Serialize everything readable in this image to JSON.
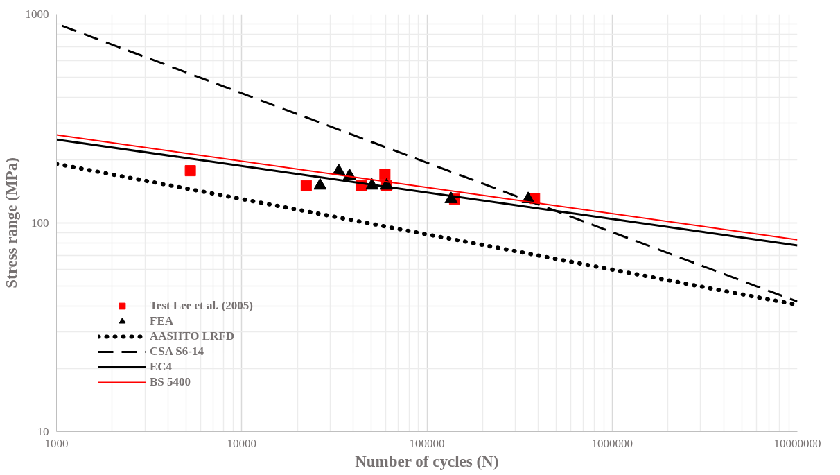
{
  "chart_data": {
    "type": "line",
    "xlabel": "Number of cycles (N)",
    "ylabel": "Stress range (MPa)",
    "log": "xy",
    "grid": true,
    "legend": "bottom left",
    "xlim": [
      1000,
      10000000
    ],
    "xticks": [
      1000,
      10000,
      100000,
      1000000,
      10000000
    ],
    "ylim": [
      10,
      1000
    ],
    "yticks": [
      10,
      100,
      1000
    ],
    "series": [
      {
        "name": "Test Lee et al. (2005)",
        "type": "scatter",
        "marker": "square",
        "color": "#ff0000",
        "x": [
          5280,
          22300,
          44100,
          59300,
          60600,
          141000,
          381000
        ],
        "values": [
          178,
          151,
          151,
          171,
          151,
          130,
          131
        ]
      },
      {
        "name": "FEA",
        "type": "scatter",
        "marker": "triangle",
        "color": "#000000",
        "x": [
          26500,
          33400,
          38200,
          50500,
          60600,
          135000,
          352000
        ],
        "values": [
          151,
          177,
          168,
          151,
          151,
          130,
          130
        ]
      },
      {
        "name": "AASHTO LRFD",
        "line_style": "dotted",
        "color": "#000000",
        "x": [
          1000,
          10000000
        ],
        "values": [
          192,
          40.5
        ]
      },
      {
        "name": "CSA S6-14",
        "line_style": "dashed",
        "color": "#000000",
        "x": [
          1070,
          10000000
        ],
        "values": [
          880,
          42
        ]
      },
      {
        "name": "EC4",
        "line_style": "solid",
        "color": "#000000",
        "x": [
          1000,
          10000000
        ],
        "values": [
          251,
          78
        ]
      },
      {
        "name": "BS 5400",
        "line_style": "solid",
        "color": "#ff0000",
        "x": [
          1000,
          10000000
        ],
        "values": [
          264,
          83
        ]
      }
    ]
  }
}
